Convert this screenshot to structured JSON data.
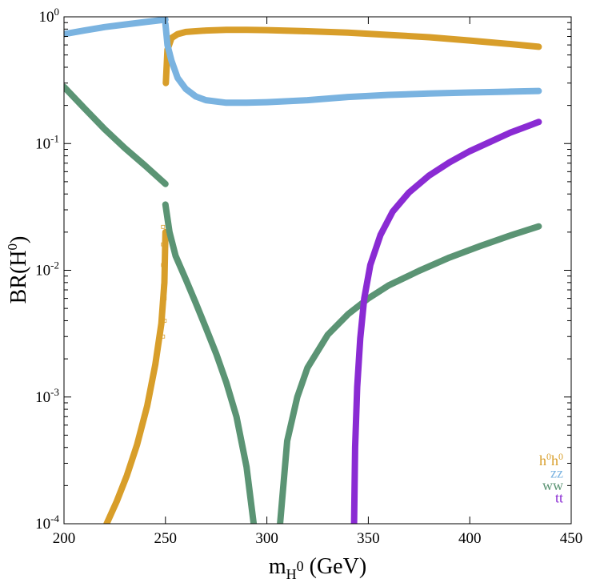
{
  "chart_data": {
    "type": "line",
    "xlabel": {
      "base": "m",
      "sub": "H",
      "subsup": "0",
      "suffix": " (GeV)"
    },
    "ylabel": {
      "prefix": "BR(H",
      "sup": "0",
      "suffix": ")"
    },
    "x_scale": "linear",
    "y_scale": "log",
    "xlim": [
      200,
      450
    ],
    "ylim": [
      0.0001,
      1
    ],
    "x_ticks": [
      {
        "value": 200,
        "label": "200"
      },
      {
        "value": 250,
        "label": "250"
      },
      {
        "value": 300,
        "label": "300"
      },
      {
        "value": 350,
        "label": "350"
      },
      {
        "value": 400,
        "label": "400"
      },
      {
        "value": 450,
        "label": "450"
      }
    ],
    "y_ticks": [
      {
        "value": 1,
        "base": "10",
        "exp": "0"
      },
      {
        "value": 0.1,
        "base": "10",
        "exp": "-1"
      },
      {
        "value": 0.01,
        "base": "10",
        "exp": "-2"
      },
      {
        "value": 0.001,
        "base": "10",
        "exp": "-3"
      },
      {
        "value": 0.0001,
        "base": "10",
        "exp": "-4"
      }
    ],
    "legend_position": "bottom-right",
    "series": [
      {
        "name": "h0h0",
        "label": {
          "t1": "h",
          "s1": "0",
          "t2": "h",
          "s2": "0"
        },
        "color": "#d89e2a",
        "marker": "square",
        "segments": [
          [
            [
              221,
              0.0001
            ],
            [
              226,
              0.00015
            ],
            [
              231,
              0.00024
            ],
            [
              236,
              0.00042
            ],
            [
              241,
              0.00085
            ],
            [
              245,
              0.0018
            ],
            [
              248,
              0.0038
            ],
            [
              249.5,
              0.008
            ],
            [
              250,
              0.02
            ]
          ],
          [
            [
              250.2,
              0.3
            ],
            [
              251,
              0.55
            ],
            [
              253,
              0.68
            ],
            [
              256,
              0.73
            ],
            [
              260,
              0.76
            ],
            [
              270,
              0.78
            ],
            [
              280,
              0.79
            ],
            [
              290,
              0.79
            ],
            [
              300,
              0.785
            ],
            [
              320,
              0.77
            ],
            [
              340,
              0.75
            ],
            [
              360,
              0.72
            ],
            [
              380,
              0.69
            ],
            [
              400,
              0.65
            ],
            [
              420,
              0.61
            ],
            [
              434,
              0.58
            ]
          ]
        ]
      },
      {
        "name": "zz",
        "label": {
          "t1": "zz"
        },
        "color": "#7ab3e0",
        "marker": "x",
        "segments": [
          [
            [
              200,
              0.73
            ],
            [
              210,
              0.78
            ],
            [
              220,
              0.83
            ],
            [
              230,
              0.87
            ],
            [
              240,
              0.91
            ],
            [
              250,
              0.95
            ]
          ],
          [
            [
              250,
              0.88
            ],
            [
              251,
              0.6
            ],
            [
              253,
              0.45
            ],
            [
              256,
              0.33
            ],
            [
              260,
              0.27
            ],
            [
              265,
              0.235
            ],
            [
              270,
              0.22
            ],
            [
              280,
              0.21
            ],
            [
              290,
              0.21
            ],
            [
              300,
              0.212
            ],
            [
              320,
              0.22
            ],
            [
              340,
              0.233
            ],
            [
              360,
              0.242
            ],
            [
              380,
              0.248
            ],
            [
              400,
              0.253
            ],
            [
              420,
              0.257
            ],
            [
              434,
              0.26
            ]
          ]
        ]
      },
      {
        "name": "ww",
        "label": {
          "t1": "ww"
        },
        "color": "#5b9474",
        "marker": "x",
        "segments": [
          [
            [
              200,
              0.28
            ],
            [
              210,
              0.19
            ],
            [
              220,
              0.13
            ],
            [
              230,
              0.092
            ],
            [
              240,
              0.067
            ],
            [
              250,
              0.048
            ]
          ],
          [
            [
              250,
              0.033
            ],
            [
              252,
              0.02
            ],
            [
              255,
              0.013
            ],
            [
              260,
              0.0085
            ],
            [
              265,
              0.0055
            ],
            [
              270,
              0.0035
            ],
            [
              275,
              0.0022
            ],
            [
              280,
              0.0013
            ],
            [
              285,
              0.0007
            ],
            [
              290,
              0.00028
            ],
            [
              293.5,
              0.0001
            ]
          ],
          [
            [
              306.5,
              0.0001
            ],
            [
              310,
              0.00045
            ],
            [
              315,
              0.001
            ],
            [
              320,
              0.0017
            ],
            [
              330,
              0.0031
            ],
            [
              340,
              0.0045
            ],
            [
              350,
              0.006
            ],
            [
              360,
              0.0076
            ],
            [
              375,
              0.0099
            ],
            [
              390,
              0.0126
            ],
            [
              405,
              0.0155
            ],
            [
              420,
              0.0188
            ],
            [
              434,
              0.0222
            ]
          ]
        ]
      },
      {
        "name": "tt",
        "label": {
          "t1": "tt"
        },
        "color": "#8a2bd3",
        "marker": "plus",
        "segments": [
          [
            [
              343,
              0.0001
            ],
            [
              343.5,
              0.0004
            ],
            [
              344.5,
              0.0012
            ],
            [
              346,
              0.0029
            ],
            [
              348,
              0.006
            ],
            [
              351,
              0.011
            ],
            [
              356,
              0.019
            ],
            [
              362,
              0.029
            ],
            [
              370,
              0.041
            ],
            [
              380,
              0.056
            ],
            [
              390,
              0.071
            ],
            [
              400,
              0.087
            ],
            [
              410,
              0.103
            ],
            [
              420,
              0.122
            ],
            [
              430,
              0.14
            ],
            [
              434,
              0.148
            ]
          ]
        ]
      }
    ]
  }
}
